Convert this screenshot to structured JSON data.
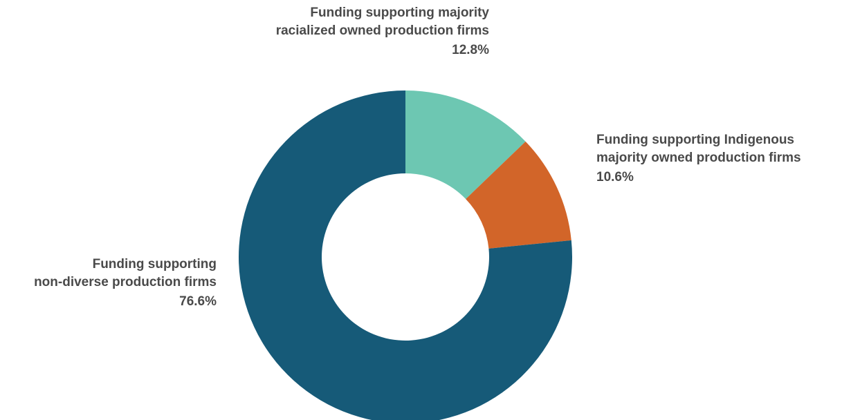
{
  "chart_data": {
    "type": "pie",
    "donut": true,
    "slices": [
      {
        "label_lines": [
          "Funding supporting majority",
          "racialized owned production firms"
        ],
        "value": 12.8,
        "value_label": "12.8%",
        "color": "#6dc7b2"
      },
      {
        "label_lines": [
          "Funding supporting Indigenous",
          "majority owned production firms"
        ],
        "value": 10.6,
        "value_label": "10.6%",
        "color": "#d26529"
      },
      {
        "label_lines": [
          "Funding supporting",
          "non-diverse production firms"
        ],
        "value": 76.6,
        "value_label": "76.6%",
        "color": "#165a78"
      }
    ]
  }
}
